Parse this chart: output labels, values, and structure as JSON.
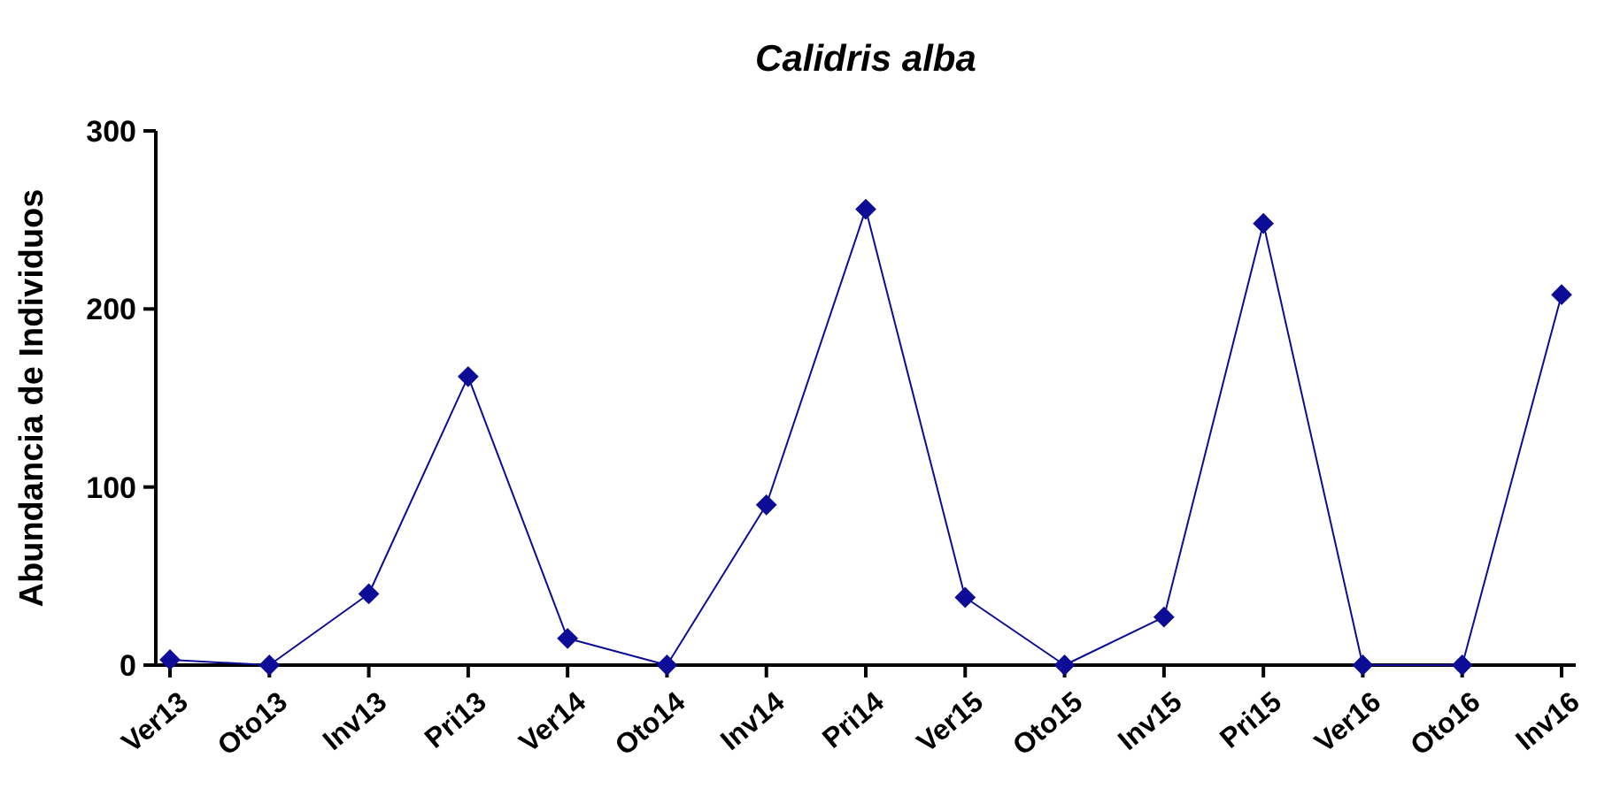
{
  "chart_data": {
    "type": "line",
    "title": "Calidris alba",
    "ylabel": "Abundancia de Individuos",
    "categories": [
      "Ver13",
      "Oto13",
      "Inv13",
      "Pri13",
      "Ver14",
      "Oto14",
      "Inv14",
      "Pri14",
      "Ver15",
      "Oto15",
      "Inv15",
      "Pri15",
      "Ver16",
      "Oto16",
      "Inv16"
    ],
    "series": [
      {
        "color": "#0c0c96",
        "values": [
          3,
          0,
          40,
          162,
          15,
          0,
          90,
          256,
          38,
          0,
          27,
          248,
          0,
          0,
          208
        ]
      }
    ],
    "ylim": [
      0,
      300
    ],
    "yticks": [
      0,
      100,
      200,
      300
    ],
    "marker": "diamond",
    "line_style": "solid"
  }
}
